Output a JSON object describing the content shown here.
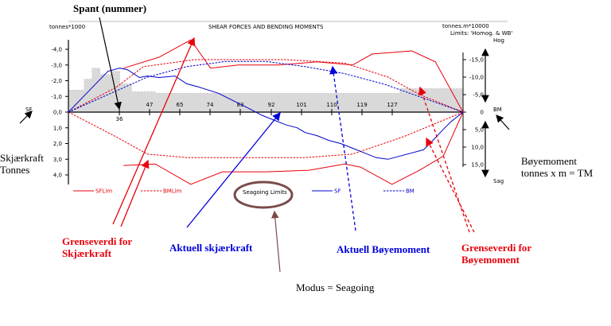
{
  "chart_data": {
    "type": "line",
    "title": "SHEAR FORCES AND BENDING MOMENTS",
    "left_unit": "tonnes*1000",
    "right_unit": "tonnes.m*10000",
    "limits_text": "Limits: 'Homog. & WB'",
    "left_axis_label": "SF",
    "right_axis_label": "BM",
    "hog_label": "Hog",
    "sag_label": "Sag",
    "mode_label": "Seagoing Limits",
    "frame_ticks": [
      "36",
      "47",
      "65",
      "74",
      "83",
      "92",
      "101",
      "110",
      "119",
      "127"
    ],
    "left_ticks": [
      "-4,0",
      "-3,0",
      "-2,0",
      "-1,0",
      "0,0",
      "1,0",
      "2,0",
      "3,0",
      "4,0"
    ],
    "right_ticks": [
      "-15,0",
      "-10,0",
      "-5,0",
      "0",
      "5,0",
      "10,0",
      "15,0"
    ],
    "xlim": [
      0,
      100
    ],
    "sf_ylim": [
      4.5,
      -4.5
    ],
    "bm_ylim": [
      17.5,
      -17.5
    ],
    "series": [
      {
        "name": "SFLim",
        "axis": "sf",
        "color": "#e8000b",
        "dash": false,
        "x": [
          14,
          23,
          31,
          36,
          43,
          53,
          63,
          72,
          77,
          82,
          87,
          93,
          100
        ],
        "y": [
          -2.8,
          -3.5,
          -4.6,
          -2.8,
          -3.0,
          -3.0,
          -3.2,
          -3.0,
          -3.7,
          -3.8,
          -3.9,
          -3.2,
          0
        ]
      },
      {
        "name": "SFLim",
        "axis": "sf",
        "color": "#e8000b",
        "dash": false,
        "x": [
          14,
          22,
          31,
          39,
          50,
          61,
          70,
          74,
          82,
          89,
          95,
          100
        ],
        "y": [
          3.4,
          3.3,
          4.6,
          3.8,
          3.8,
          3.7,
          3.3,
          3.5,
          4.6,
          3.7,
          2.8,
          0
        ]
      },
      {
        "name": "BMLim",
        "axis": "bm",
        "color": "#e8000b",
        "dash": true,
        "x": [
          0,
          12,
          19,
          32,
          55,
          70,
          81,
          89,
          100
        ],
        "y": [
          0,
          -7,
          -13,
          -15,
          -15,
          -14,
          -10,
          -5,
          0
        ]
      },
      {
        "name": "BMLim",
        "axis": "bm",
        "color": "#e8000b",
        "dash": true,
        "x": [
          0,
          12,
          20,
          30,
          45,
          60,
          72,
          85,
          100
        ],
        "y": [
          0,
          7,
          12,
          13,
          13,
          13,
          12,
          7,
          0
        ]
      },
      {
        "name": "SF",
        "axis": "sf",
        "color": "#0000cc",
        "dash": false,
        "x": [
          0,
          5,
          10,
          13,
          15,
          18,
          20,
          23,
          27,
          30,
          33,
          38,
          42,
          46,
          49,
          52,
          55,
          58,
          60,
          63,
          66,
          69,
          72,
          75,
          78,
          81,
          84,
          87,
          90,
          92,
          95,
          97,
          98,
          100
        ],
        "y": [
          0,
          -1.3,
          -2.6,
          -2.8,
          -2.7,
          -2.2,
          -2.3,
          -2.2,
          -2.3,
          -1.8,
          -1.6,
          -1.2,
          -0.7,
          -0.2,
          0.2,
          0.5,
          0.8,
          1.0,
          1.3,
          1.5,
          1.8,
          2.0,
          2.3,
          2.6,
          2.9,
          3.0,
          2.8,
          2.6,
          2.4,
          1.9,
          1.1,
          0.6,
          0.4,
          0
        ]
      },
      {
        "name": "BM",
        "axis": "bm",
        "color": "#0000cc",
        "dash": true,
        "x": [
          0,
          10,
          20,
          30,
          40,
          50,
          60,
          70,
          80,
          90,
          100
        ],
        "y": [
          0,
          -5,
          -10,
          -13,
          -14.5,
          -14.5,
          -13,
          -11,
          -8,
          -4,
          0
        ]
      }
    ],
    "stillwater": {
      "x": [
        0,
        4,
        4,
        6,
        6,
        8,
        8,
        11,
        11,
        13,
        13,
        16,
        16,
        22,
        22,
        84,
        84,
        100
      ],
      "y": [
        -1.4,
        -1.4,
        -2.1,
        -2.1,
        -2.8,
        -2.8,
        -2.4,
        -2.4,
        -2.6,
        -2.6,
        -1.8,
        -1.8,
        -1.3,
        -1.3,
        -1.2,
        -1.2,
        -1.5,
        -1.5
      ]
    },
    "legend": [
      {
        "label": "SFLim",
        "color": "#e8000b",
        "dash": false
      },
      {
        "label": "BMLim",
        "color": "#e8000b",
        "dash": true
      },
      {
        "label": "SF",
        "color": "#0000cc",
        "dash": false
      },
      {
        "label": "BM",
        "color": "#0000cc",
        "dash": true
      }
    ],
    "grid": false
  },
  "annotations": {
    "spant": "Spant (nummer)",
    "skjaerkraft": [
      "Skjærkraft",
      "Tonnes"
    ],
    "boyemoment": [
      "Bøyemoment",
      "tonnes x m = TM"
    ],
    "grense_sk": [
      "Grenseverdi for",
      "Skjærkraft"
    ],
    "aktuell_sk": "Aktuell skjærkraft",
    "aktuell_bm": "Aktuell Bøyemoment",
    "grense_bm": [
      "Grenseverdi for",
      "Bøyemoment"
    ],
    "modus": "Modus = Seagoing"
  }
}
